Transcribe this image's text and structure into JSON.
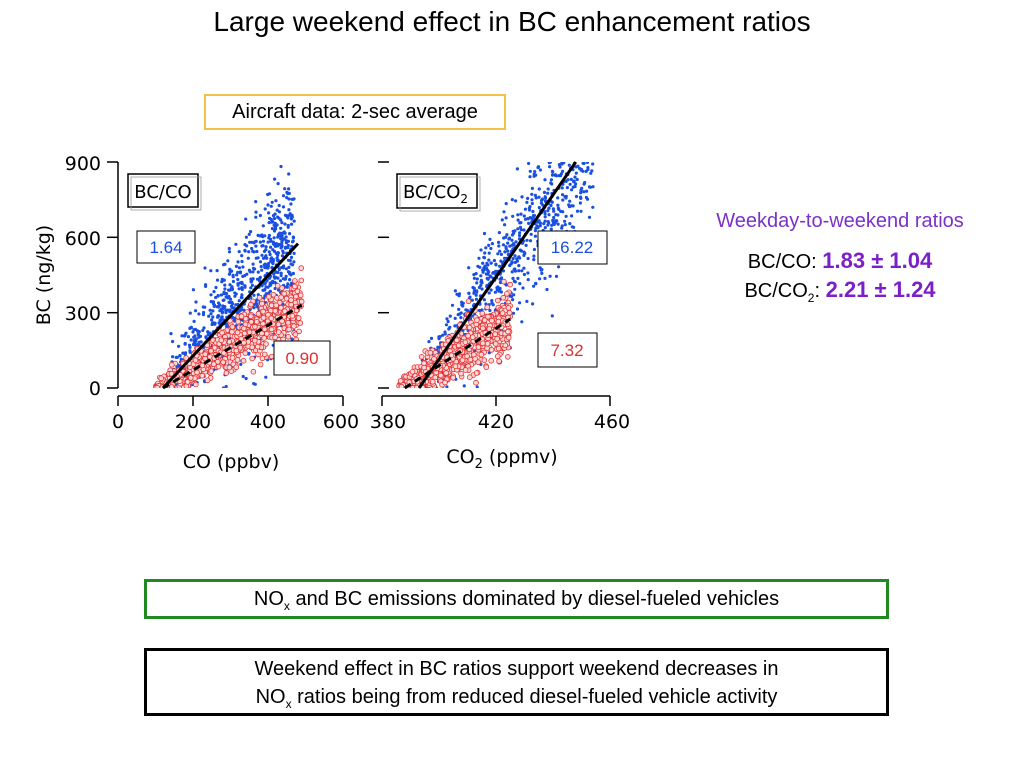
{
  "title": "Large weekend effect in BC enhancement ratios",
  "subtitle": "Aircraft data: 2-sec average",
  "ratios_panel": {
    "heading": "Weekday-to-weekend ratios",
    "co_label": "BC/CO:",
    "co_value": "1.83 ± 1.04",
    "co2_label_pre": "BC/CO",
    "co2_label_sub": "2",
    "co2_label_post": ":",
    "co2_value": "2.21 ± 1.24"
  },
  "box_green": {
    "pre": "NO",
    "sub": "x",
    "post": " and BC emissions dominated by diesel-fueled vehicles"
  },
  "box_black": {
    "line1": "Weekend effect in BC ratios support weekend decreases in",
    "line2_pre": "NO",
    "line2_sub": "x",
    "line2_post": " ratios being from reduced diesel-fueled vehicle activity"
  },
  "colors": {
    "weekday": "#1a4fe0",
    "weekend": "#e03030",
    "purple": "#7a1fc9",
    "green": "#1f8a1f",
    "highlight": "#f2c14a"
  },
  "chart_data": [
    {
      "type": "scatter",
      "panel_label": "BC/CO",
      "xlabel": "CO (ppbv)",
      "ylabel": "BC (ng/kg)",
      "xlim": [
        0,
        600
      ],
      "ylim": [
        0,
        900
      ],
      "xticks": [
        0,
        200,
        400,
        600
      ],
      "yticks": [
        0,
        300,
        600,
        900
      ],
      "series": [
        {
          "name": "weekday",
          "color": "#1a4fe0",
          "fit_slope_label": "1.64",
          "fit_line": {
            "x": [
              120,
              480
            ],
            "y": [
              0,
              575
            ]
          },
          "cloud": {
            "x_range": [
              140,
              470
            ],
            "y_center_slope": 1.64,
            "y_center_intercept": -200
          }
        },
        {
          "name": "weekend",
          "color": "#e03030",
          "fit_slope_label": "0.90",
          "fit_line": {
            "x": [
              120,
              490
            ],
            "y": [
              0,
              330
            ]
          },
          "cloud": {
            "x_range": [
              100,
              490
            ],
            "y_center_slope": 0.9,
            "y_center_intercept": -105
          }
        }
      ]
    },
    {
      "type": "scatter",
      "panel_label_pre": "BC/CO",
      "panel_label_sub": "2",
      "xlabel_pre": "CO",
      "xlabel_sub": "2",
      "xlabel_post": " (ppmv)",
      "xlim": [
        380,
        460
      ],
      "ylim": [
        0,
        900
      ],
      "xticks": [
        380,
        420,
        460
      ],
      "yticks": [
        0,
        300,
        600,
        900
      ],
      "series": [
        {
          "name": "weekday",
          "color": "#1a4fe0",
          "fit_slope_label": "16.22",
          "fit_line": {
            "x": [
              393,
              448
            ],
            "y": [
              0,
              900
            ]
          },
          "cloud": {
            "x_range": [
              392,
              455
            ],
            "y_center_slope": 16.22,
            "y_center_intercept": -6380
          }
        },
        {
          "name": "weekend",
          "color": "#e03030",
          "fit_slope_label": "7.32",
          "fit_line": {
            "x": [
              388,
              425
            ],
            "y": [
              0,
              275
            ]
          },
          "cloud": {
            "x_range": [
              386,
              425
            ],
            "y_center_slope": 7.32,
            "y_center_intercept": -2840
          }
        }
      ]
    }
  ]
}
